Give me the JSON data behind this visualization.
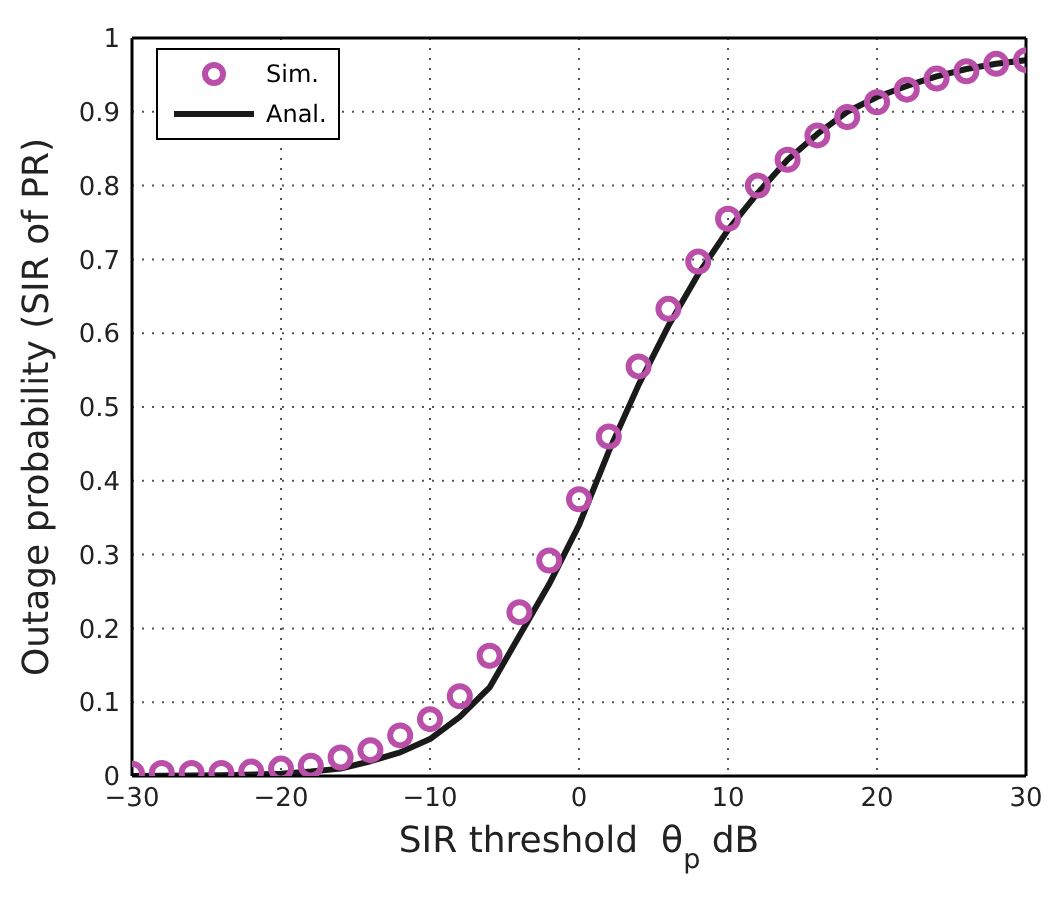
{
  "chart_data": {
    "type": "line",
    "xlabel": "SIR threshold  θ$_{p}$ dB",
    "ylabel": "Outage probability (SIR of PR)",
    "xlim": [
      -30,
      30
    ],
    "xticks": [
      -30,
      -20,
      -10,
      0,
      10,
      20,
      30
    ],
    "ylim": [
      0,
      1
    ],
    "yticks": [
      0,
      0.1,
      0.2,
      0.3,
      0.4,
      0.5,
      0.6,
      0.7,
      0.8,
      0.9,
      1
    ],
    "grid": true,
    "legend": "top left",
    "series": [
      {
        "name": "Sim.",
        "type": "scatter",
        "marker": "circle",
        "color": "#b94fa8",
        "x": [
          -30,
          -28,
          -26,
          -24,
          -22,
          -20,
          -18,
          -16,
          -14,
          -12,
          -10,
          -8,
          -6,
          -4,
          -2,
          0,
          2,
          4,
          6,
          8,
          10,
          12,
          14,
          16,
          18,
          20,
          22,
          24,
          26,
          28,
          30
        ],
        "values": [
          0.003,
          0.004,
          0.004,
          0.004,
          0.006,
          0.01,
          0.014,
          0.025,
          0.035,
          0.055,
          0.077,
          0.108,
          0.163,
          0.222,
          0.292,
          0.375,
          0.46,
          0.555,
          0.633,
          0.697,
          0.755,
          0.8,
          0.835,
          0.868,
          0.893,
          0.913,
          0.93,
          0.945,
          0.955,
          0.965,
          0.97
        ]
      },
      {
        "name": "Anal.",
        "type": "line",
        "marker": "none",
        "line_style": "solid",
        "color": "#1a1a1a",
        "x": [
          -30,
          -24,
          -20,
          -18,
          -16,
          -14,
          -12,
          -10,
          -8,
          -6,
          -4,
          -2,
          0,
          2,
          4,
          6,
          8,
          10,
          12,
          14,
          16,
          18,
          20,
          22,
          24,
          26,
          28,
          30
        ],
        "values": [
          0,
          0.001,
          0.003,
          0.006,
          0.01,
          0.02,
          0.032,
          0.05,
          0.08,
          0.12,
          0.19,
          0.26,
          0.34,
          0.44,
          0.53,
          0.61,
          0.68,
          0.74,
          0.79,
          0.835,
          0.87,
          0.9,
          0.92,
          0.935,
          0.948,
          0.958,
          0.965,
          0.97
        ]
      }
    ]
  }
}
